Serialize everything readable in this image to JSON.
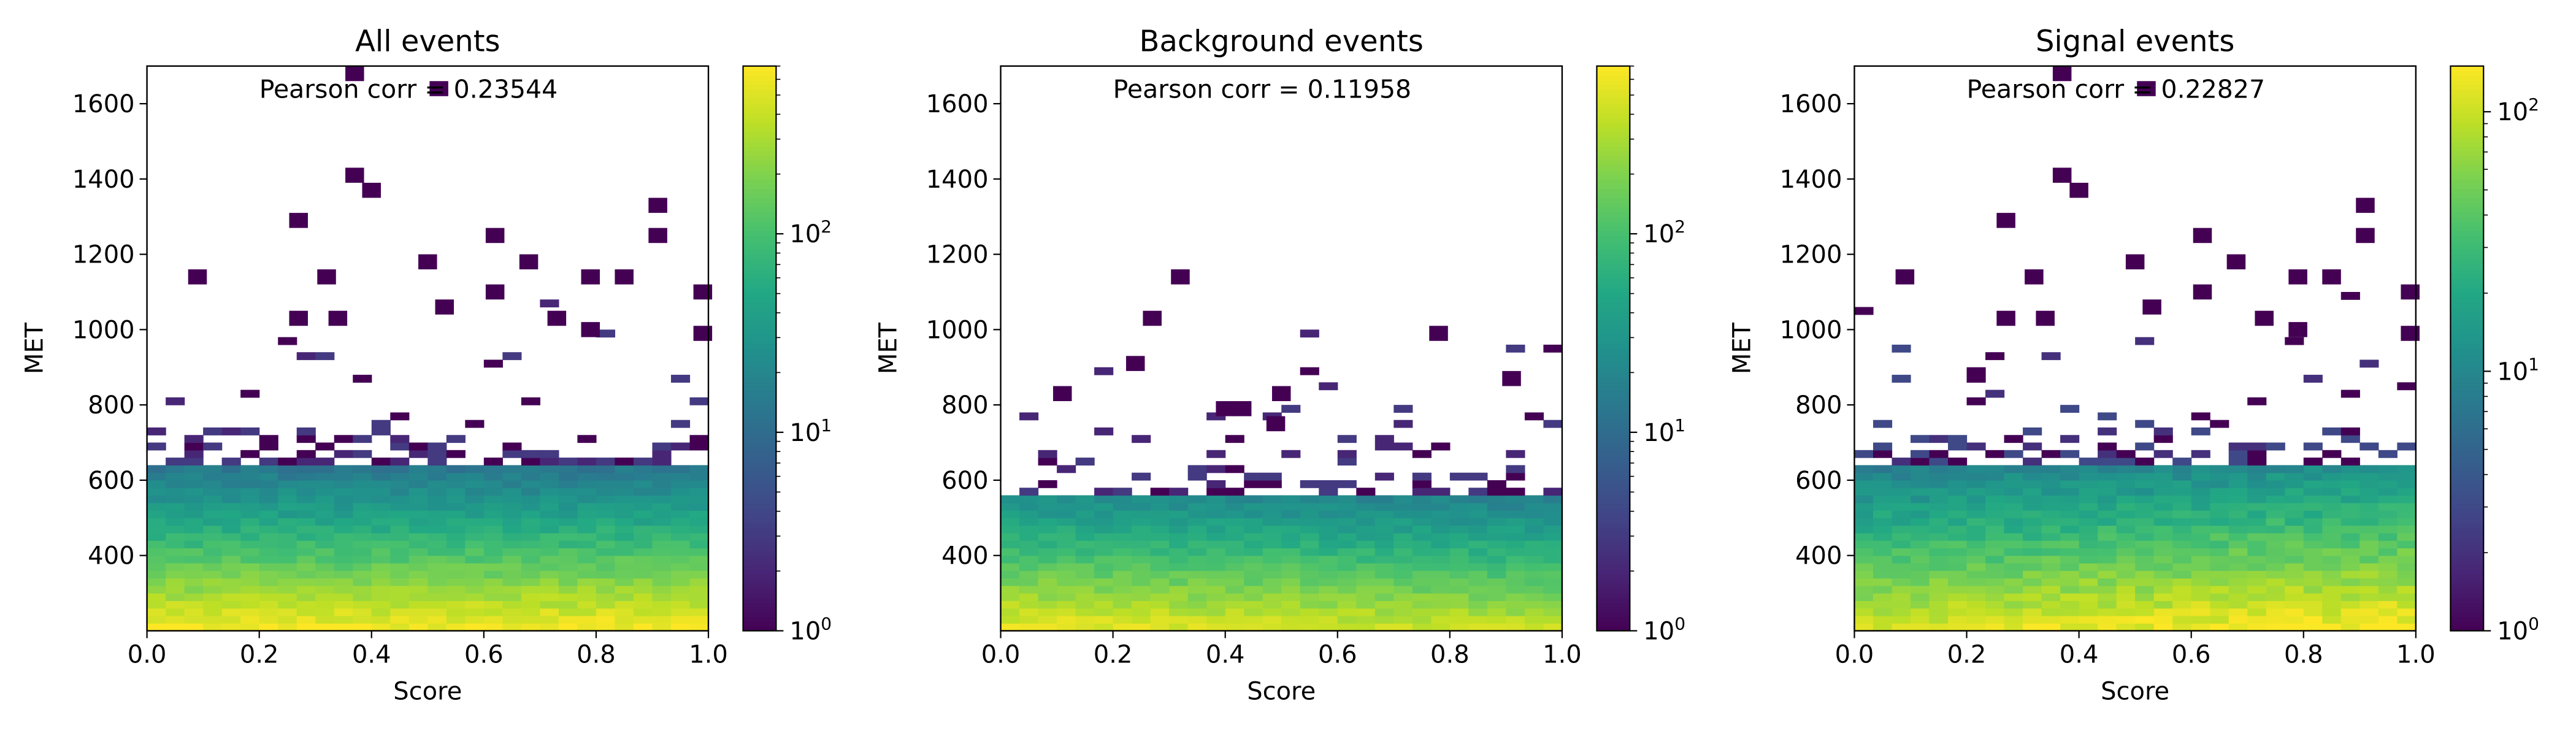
{
  "chart_data": [
    {
      "type": "heatmap",
      "title": "All events",
      "xlabel": "Score",
      "ylabel": "MET",
      "xlim": [
        0.0,
        1.0
      ],
      "ylim": [
        200,
        1700
      ],
      "xticks": [
        "0.0",
        "0.2",
        "0.4",
        "0.6",
        "0.8",
        "1.0"
      ],
      "yticks": [
        "400",
        "600",
        "800",
        "1000",
        "1200",
        "1400",
        "1600"
      ],
      "colorbar_ticks": [
        "10^0",
        "10^1",
        "10^2"
      ],
      "colorbar_scale": "log",
      "colorbar_range": [
        1,
        700
      ],
      "annotation": "Pearson corr = 0.23544",
      "colormap": "viridis",
      "bins": {
        "x": 30,
        "y": 75
      },
      "peak_count": 700,
      "met_profile_note": "counts fall steeply with MET; dense region below ~600",
      "outliers": [
        [
          0.37,
          1680
        ],
        [
          0.52,
          1640
        ],
        [
          0.37,
          1410
        ],
        [
          0.4,
          1370
        ],
        [
          0.27,
          1290
        ],
        [
          0.91,
          1330
        ],
        [
          0.91,
          1250
        ],
        [
          0.62,
          1250
        ],
        [
          0.09,
          1140
        ],
        [
          0.32,
          1140
        ],
        [
          0.5,
          1180
        ],
        [
          0.68,
          1180
        ],
        [
          0.79,
          1140
        ],
        [
          0.85,
          1140
        ],
        [
          0.99,
          1100
        ],
        [
          0.62,
          1100
        ],
        [
          0.53,
          1060
        ],
        [
          0.27,
          1030
        ],
        [
          0.34,
          1030
        ],
        [
          0.73,
          1030
        ],
        [
          0.79,
          1000
        ],
        [
          0.99,
          990
        ]
      ]
    },
    {
      "type": "heatmap",
      "title": "Background events",
      "xlabel": "Score",
      "ylabel": "MET",
      "xlim": [
        0.0,
        1.0
      ],
      "ylim": [
        200,
        1700
      ],
      "xticks": [
        "0.0",
        "0.2",
        "0.4",
        "0.6",
        "0.8",
        "1.0"
      ],
      "yticks": [
        "400",
        "600",
        "800",
        "1000",
        "1200",
        "1400",
        "1600"
      ],
      "colorbar_ticks": [
        "10^0",
        "10^1",
        "10^2"
      ],
      "colorbar_scale": "log",
      "colorbar_range": [
        1,
        700
      ],
      "annotation": "Pearson corr = 0.11958",
      "colormap": "viridis",
      "bins": {
        "x": 30,
        "y": 75
      },
      "peak_count": 600,
      "met_profile_note": "counts fall with MET; dense region below ~550",
      "outliers": [
        [
          0.32,
          1140
        ],
        [
          0.27,
          1030
        ],
        [
          0.24,
          910
        ],
        [
          0.78,
          990
        ],
        [
          0.91,
          870
        ],
        [
          0.5,
          830
        ],
        [
          0.4,
          790
        ],
        [
          0.43,
          790
        ],
        [
          0.49,
          750
        ],
        [
          0.11,
          830
        ]
      ]
    },
    {
      "type": "heatmap",
      "title": "Signal events",
      "xlabel": "Score",
      "ylabel": "MET",
      "xlim": [
        0.0,
        1.0
      ],
      "ylim": [
        200,
        1700
      ],
      "xticks": [
        "0.0",
        "0.2",
        "0.4",
        "0.6",
        "0.8",
        "1.0"
      ],
      "yticks": [
        "400",
        "600",
        "800",
        "1000",
        "1200",
        "1400",
        "1600"
      ],
      "colorbar_ticks": [
        "10^0",
        "10^1",
        "10^2"
      ],
      "colorbar_scale": "log",
      "colorbar_range": [
        1,
        150
      ],
      "annotation": "Pearson corr = 0.22827",
      "colormap": "viridis",
      "bins": {
        "x": 30,
        "y": 75
      },
      "peak_count": 150,
      "met_profile_note": "broader distribution; dense region below ~600",
      "outliers": [
        [
          0.37,
          1680
        ],
        [
          0.52,
          1640
        ],
        [
          0.37,
          1410
        ],
        [
          0.4,
          1370
        ],
        [
          0.27,
          1290
        ],
        [
          0.91,
          1330
        ],
        [
          0.91,
          1250
        ],
        [
          0.62,
          1250
        ],
        [
          0.09,
          1140
        ],
        [
          0.32,
          1140
        ],
        [
          0.5,
          1180
        ],
        [
          0.68,
          1180
        ],
        [
          0.79,
          1140
        ],
        [
          0.85,
          1140
        ],
        [
          0.99,
          1100
        ],
        [
          0.62,
          1100
        ],
        [
          0.53,
          1060
        ],
        [
          0.27,
          1030
        ],
        [
          0.34,
          1030
        ],
        [
          0.73,
          1030
        ],
        [
          0.79,
          1000
        ],
        [
          0.99,
          990
        ]
      ]
    }
  ]
}
